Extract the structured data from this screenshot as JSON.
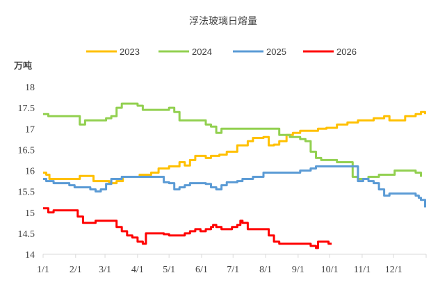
{
  "chart_data": {
    "type": "line",
    "title": "浮法玻璃日熔量",
    "ylabel": "万吨",
    "ylim": [
      14,
      18
    ],
    "y_ticks": [
      "14",
      "14.5",
      "15",
      "15.5",
      "16",
      "16.5",
      "17",
      "17.5",
      "18"
    ],
    "x_ticks": [
      "1/1",
      "2/1",
      "3/1",
      "4/1",
      "5/1",
      "6/1",
      "7/1",
      "8/1",
      "9/1",
      "10/1",
      "11/1",
      "12/1"
    ],
    "legend_position": "top",
    "grid": false,
    "series": [
      {
        "name": "2023",
        "color": "#FFC000",
        "points": [
          [
            0,
            15.95
          ],
          [
            3,
            15.9
          ],
          [
            6,
            15.8
          ],
          [
            30,
            15.8
          ],
          [
            35,
            15.87
          ],
          [
            45,
            15.87
          ],
          [
            48,
            15.75
          ],
          [
            60,
            15.75
          ],
          [
            63,
            15.7
          ],
          [
            70,
            15.75
          ],
          [
            76,
            15.85
          ],
          [
            85,
            15.85
          ],
          [
            88,
            15.85
          ],
          [
            92,
            15.9
          ],
          [
            100,
            15.9
          ],
          [
            103,
            15.95
          ],
          [
            110,
            16.05
          ],
          [
            120,
            16.1
          ],
          [
            130,
            16.2
          ],
          [
            135,
            16.12
          ],
          [
            140,
            16.25
          ],
          [
            145,
            16.35
          ],
          [
            155,
            16.3
          ],
          [
            160,
            16.35
          ],
          [
            168,
            16.38
          ],
          [
            175,
            16.45
          ],
          [
            185,
            16.6
          ],
          [
            195,
            16.7
          ],
          [
            200,
            16.78
          ],
          [
            210,
            16.8
          ],
          [
            215,
            16.6
          ],
          [
            220,
            16.62
          ],
          [
            225,
            16.7
          ],
          [
            232,
            16.85
          ],
          [
            238,
            16.9
          ],
          [
            245,
            16.95
          ],
          [
            255,
            16.95
          ],
          [
            262,
            17.0
          ],
          [
            270,
            17.02
          ],
          [
            280,
            17.1
          ],
          [
            290,
            17.15
          ],
          [
            300,
            17.2
          ],
          [
            315,
            17.25
          ],
          [
            325,
            17.3
          ],
          [
            330,
            17.2
          ],
          [
            345,
            17.3
          ],
          [
            355,
            17.35
          ],
          [
            360,
            17.4
          ],
          [
            364,
            17.35
          ]
        ]
      },
      {
        "name": "2024",
        "color": "#92D050",
        "points": [
          [
            0,
            17.35
          ],
          [
            5,
            17.3
          ],
          [
            30,
            17.3
          ],
          [
            35,
            17.1
          ],
          [
            40,
            17.2
          ],
          [
            55,
            17.2
          ],
          [
            60,
            17.25
          ],
          [
            65,
            17.3
          ],
          [
            70,
            17.5
          ],
          [
            75,
            17.6
          ],
          [
            85,
            17.6
          ],
          [
            90,
            17.55
          ],
          [
            95,
            17.45
          ],
          [
            100,
            17.45
          ],
          [
            115,
            17.45
          ],
          [
            120,
            17.5
          ],
          [
            125,
            17.4
          ],
          [
            130,
            17.2
          ],
          [
            150,
            17.2
          ],
          [
            155,
            17.1
          ],
          [
            160,
            17.05
          ],
          [
            165,
            16.9
          ],
          [
            170,
            17.0
          ],
          [
            215,
            17.0
          ],
          [
            225,
            16.85
          ],
          [
            235,
            16.8
          ],
          [
            245,
            16.75
          ],
          [
            250,
            16.7
          ],
          [
            255,
            16.45
          ],
          [
            260,
            16.3
          ],
          [
            265,
            16.25
          ],
          [
            275,
            16.25
          ],
          [
            280,
            16.2
          ],
          [
            290,
            16.2
          ],
          [
            295,
            15.85
          ],
          [
            300,
            15.8
          ],
          [
            305,
            15.8
          ],
          [
            310,
            15.85
          ],
          [
            320,
            15.9
          ],
          [
            330,
            15.9
          ],
          [
            335,
            16.0
          ],
          [
            345,
            16.0
          ],
          [
            355,
            15.95
          ],
          [
            360,
            15.85
          ]
        ]
      },
      {
        "name": "2025",
        "color": "#5B9BD5",
        "points": [
          [
            0,
            15.8
          ],
          [
            3,
            15.75
          ],
          [
            10,
            15.7
          ],
          [
            20,
            15.7
          ],
          [
            25,
            15.65
          ],
          [
            30,
            15.6
          ],
          [
            40,
            15.6
          ],
          [
            45,
            15.55
          ],
          [
            50,
            15.5
          ],
          [
            55,
            15.55
          ],
          [
            60,
            15.68
          ],
          [
            65,
            15.8
          ],
          [
            75,
            15.85
          ],
          [
            85,
            15.85
          ],
          [
            95,
            15.85
          ],
          [
            110,
            15.85
          ],
          [
            115,
            15.72
          ],
          [
            120,
            15.7
          ],
          [
            125,
            15.55
          ],
          [
            130,
            15.6
          ],
          [
            135,
            15.65
          ],
          [
            140,
            15.7
          ],
          [
            155,
            15.68
          ],
          [
            160,
            15.6
          ],
          [
            165,
            15.55
          ],
          [
            170,
            15.65
          ],
          [
            175,
            15.72
          ],
          [
            185,
            15.75
          ],
          [
            190,
            15.8
          ],
          [
            200,
            15.85
          ],
          [
            210,
            15.95
          ],
          [
            240,
            15.95
          ],
          [
            245,
            16.0
          ],
          [
            255,
            16.05
          ],
          [
            260,
            16.1
          ],
          [
            265,
            16.1
          ],
          [
            290,
            16.1
          ],
          [
            295,
            16.1
          ],
          [
            300,
            15.75
          ],
          [
            305,
            15.8
          ],
          [
            310,
            15.75
          ],
          [
            315,
            15.7
          ],
          [
            320,
            15.55
          ],
          [
            325,
            15.4
          ],
          [
            330,
            15.45
          ],
          [
            335,
            15.45
          ],
          [
            345,
            15.45
          ],
          [
            350,
            15.45
          ],
          [
            355,
            15.4
          ],
          [
            358,
            15.35
          ],
          [
            360,
            15.3
          ],
          [
            364,
            15.12
          ]
        ]
      },
      {
        "name": "2026",
        "color": "#FF0000",
        "points": [
          [
            0,
            15.1
          ],
          [
            5,
            15.0
          ],
          [
            10,
            15.05
          ],
          [
            30,
            15.05
          ],
          [
            33,
            14.9
          ],
          [
            38,
            14.75
          ],
          [
            45,
            14.75
          ],
          [
            50,
            14.8
          ],
          [
            65,
            14.8
          ],
          [
            70,
            14.65
          ],
          [
            75,
            14.55
          ],
          [
            80,
            14.45
          ],
          [
            85,
            14.4
          ],
          [
            90,
            14.3
          ],
          [
            95,
            14.25
          ],
          [
            98,
            14.5
          ],
          [
            105,
            14.5
          ],
          [
            115,
            14.48
          ],
          [
            120,
            14.45
          ],
          [
            130,
            14.45
          ],
          [
            135,
            14.5
          ],
          [
            140,
            14.55
          ],
          [
            145,
            14.6
          ],
          [
            150,
            14.55
          ],
          [
            155,
            14.6
          ],
          [
            160,
            14.65
          ],
          [
            162,
            14.7
          ],
          [
            165,
            14.65
          ],
          [
            170,
            14.6
          ],
          [
            175,
            14.6
          ],
          [
            180,
            14.65
          ],
          [
            185,
            14.7
          ],
          [
            188,
            14.8
          ],
          [
            190,
            14.75
          ],
          [
            195,
            14.6
          ],
          [
            210,
            14.6
          ],
          [
            215,
            14.45
          ],
          [
            220,
            14.3
          ],
          [
            225,
            14.25
          ],
          [
            250,
            14.25
          ],
          [
            255,
            14.2
          ],
          [
            260,
            14.15
          ],
          [
            262,
            14.3
          ],
          [
            268,
            14.3
          ],
          [
            272,
            14.25
          ],
          [
            275,
            14.25
          ]
        ]
      }
    ]
  }
}
